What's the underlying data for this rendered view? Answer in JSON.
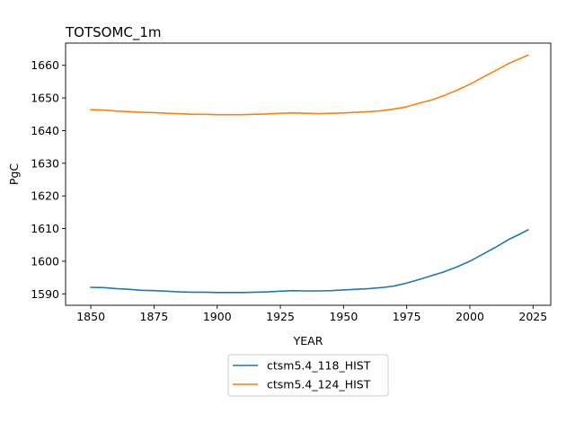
{
  "chart_data": {
    "type": "line",
    "title": "TOTSOMC_1m",
    "xlabel": "YEAR",
    "ylabel": "PgC",
    "xlim": [
      1840,
      2032
    ],
    "ylim": [
      1586.5,
      1666.8
    ],
    "xticks": [
      1850,
      1875,
      1900,
      1925,
      1950,
      1975,
      2000,
      2025
    ],
    "yticks": [
      1590,
      1600,
      1610,
      1620,
      1630,
      1640,
      1650,
      1660
    ],
    "grid": false,
    "legend_position": "below-center",
    "series": [
      {
        "name": "ctsm5.4_118_HIST",
        "color": "#1f77b4",
        "x": [
          1850,
          1855,
          1860,
          1865,
          1870,
          1875,
          1880,
          1885,
          1890,
          1895,
          1900,
          1905,
          1910,
          1915,
          1920,
          1925,
          1930,
          1935,
          1940,
          1945,
          1950,
          1955,
          1960,
          1965,
          1970,
          1975,
          1980,
          1985,
          1990,
          1995,
          2000,
          2005,
          2010,
          2015,
          2020,
          2023
        ],
        "y": [
          1592.0,
          1591.9,
          1591.6,
          1591.4,
          1591.1,
          1591.0,
          1590.8,
          1590.6,
          1590.5,
          1590.5,
          1590.4,
          1590.4,
          1590.4,
          1590.5,
          1590.6,
          1590.8,
          1591.0,
          1590.9,
          1590.9,
          1591.0,
          1591.2,
          1591.4,
          1591.6,
          1591.9,
          1592.4,
          1593.3,
          1594.4,
          1595.6,
          1596.8,
          1598.3,
          1600.0,
          1602.1,
          1604.2,
          1606.5,
          1608.4,
          1609.6
        ]
      },
      {
        "name": "ctsm5.4_124_HIST",
        "color": "#ff7f0e",
        "x": [
          1850,
          1855,
          1860,
          1865,
          1870,
          1875,
          1880,
          1885,
          1890,
          1895,
          1900,
          1905,
          1910,
          1915,
          1920,
          1925,
          1930,
          1935,
          1940,
          1945,
          1950,
          1955,
          1960,
          1965,
          1970,
          1975,
          1980,
          1985,
          1990,
          1995,
          2000,
          2005,
          2010,
          2015,
          2020,
          2023
        ],
        "y": [
          1646.4,
          1646.3,
          1646.0,
          1645.8,
          1645.6,
          1645.5,
          1645.3,
          1645.2,
          1645.0,
          1645.0,
          1644.9,
          1644.9,
          1644.9,
          1645.0,
          1645.1,
          1645.3,
          1645.4,
          1645.3,
          1645.2,
          1645.3,
          1645.4,
          1645.6,
          1645.8,
          1646.1,
          1646.6,
          1647.3,
          1648.4,
          1649.4,
          1650.8,
          1652.4,
          1654.2,
          1656.3,
          1658.3,
          1660.4,
          1662.1,
          1663.1
        ]
      }
    ]
  }
}
